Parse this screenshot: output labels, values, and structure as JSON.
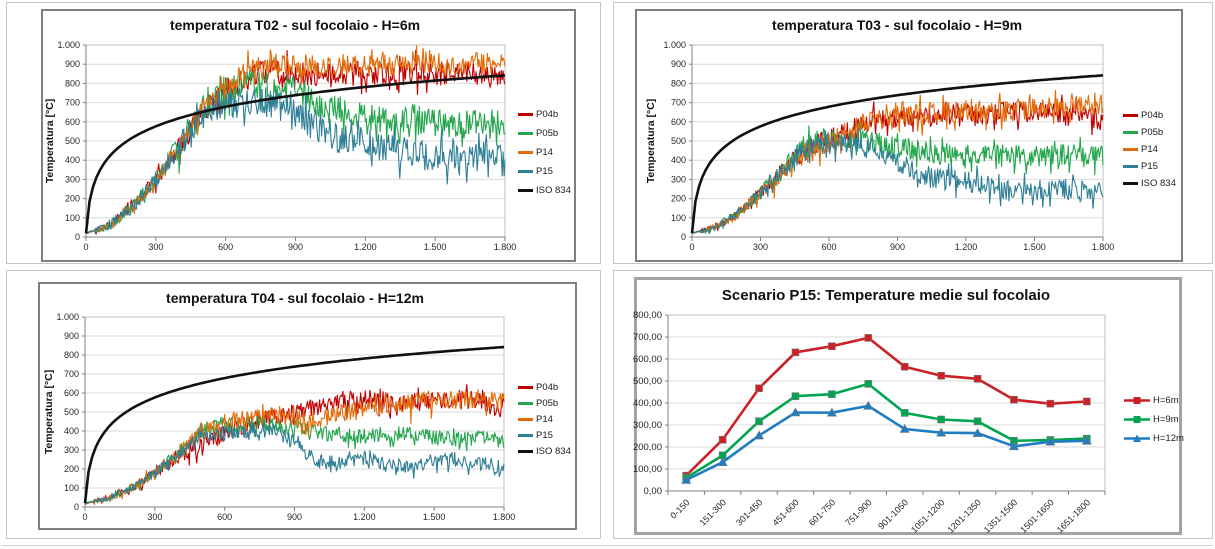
{
  "page": {
    "background": "#ffffff",
    "grid_border_color": "#c6c6c6"
  },
  "chart_data": [
    {
      "id": "t02",
      "type": "line",
      "title": "temperatura T02 - sul focolaio - H=6m",
      "ylabel": "Temperatura [°C]",
      "x_axis": {
        "range": [
          0,
          1800
        ],
        "tick_labels": [
          "0",
          "300",
          "600",
          "900",
          "1.200",
          "1.500",
          "1.800"
        ]
      },
      "y_axis": {
        "range": [
          0,
          1000
        ],
        "tick_labels": [
          "0",
          "100",
          "200",
          "300",
          "400",
          "500",
          "600",
          "700",
          "800",
          "900",
          "1.000"
        ]
      },
      "grid": "horizontal",
      "legend_position": "right",
      "series": [
        {
          "name": "P04b",
          "color": "#C00000",
          "noise_amplitude": 65,
          "mean_x_step": 100,
          "mean_values": [
            20,
            60,
            160,
            300,
            470,
            650,
            760,
            830,
            870,
            860,
            850,
            840,
            850,
            845,
            860,
            850,
            845,
            855,
            830
          ]
        },
        {
          "name": "P05b",
          "color": "#24A64C",
          "noise_amplitude": 75,
          "mean_x_step": 100,
          "mean_values": [
            20,
            60,
            160,
            300,
            480,
            680,
            760,
            800,
            790,
            760,
            700,
            660,
            630,
            610,
            620,
            600,
            590,
            610,
            600
          ]
        },
        {
          "name": "P14",
          "color": "#E36C0A",
          "noise_amplitude": 55,
          "mean_x_step": 100,
          "mean_values": [
            20,
            60,
            155,
            295,
            470,
            660,
            780,
            880,
            900,
            890,
            880,
            890,
            900,
            895,
            900,
            905,
            900,
            910,
            900
          ]
        },
        {
          "name": "P15",
          "color": "#2F7F96",
          "noise_amplitude": 80,
          "mean_x_step": 100,
          "mean_values": [
            20,
            60,
            160,
            300,
            460,
            640,
            700,
            710,
            700,
            650,
            560,
            510,
            490,
            460,
            440,
            420,
            430,
            430,
            390
          ]
        },
        {
          "name": "ISO 834",
          "color": "#111111",
          "curve": "iso834",
          "formula": "T = 20 + 345*log10(8*t_min + 1)"
        }
      ]
    },
    {
      "id": "t03",
      "type": "line",
      "title": "temperatura T03 - sul focolaio - H=9m",
      "ylabel": "Temperatura [°C]",
      "x_axis": {
        "range": [
          0,
          1800
        ],
        "tick_labels": [
          "0",
          "300",
          "600",
          "900",
          "1.200",
          "1.500",
          "1.800"
        ]
      },
      "y_axis": {
        "range": [
          0,
          1000
        ],
        "tick_labels": [
          "0",
          "100",
          "200",
          "300",
          "400",
          "500",
          "600",
          "700",
          "800",
          "900",
          "1.000"
        ]
      },
      "grid": "horizontal",
      "legend_position": "right",
      "series": [
        {
          "name": "P04b",
          "color": "#C00000",
          "noise_amplitude": 55,
          "mean_x_step": 100,
          "mean_values": [
            20,
            50,
            120,
            230,
            350,
            460,
            510,
            560,
            610,
            630,
            620,
            635,
            650,
            640,
            655,
            650,
            645,
            655,
            600
          ]
        },
        {
          "name": "P05b",
          "color": "#24A64C",
          "noise_amplitude": 55,
          "mean_x_step": 100,
          "mean_values": [
            20,
            50,
            120,
            230,
            360,
            490,
            510,
            515,
            500,
            470,
            450,
            430,
            420,
            430,
            435,
            420,
            425,
            435,
            420
          ]
        },
        {
          "name": "P14",
          "color": "#E36C0A",
          "noise_amplitude": 60,
          "mean_x_step": 100,
          "mean_values": [
            20,
            50,
            118,
            228,
            355,
            440,
            490,
            560,
            620,
            650,
            640,
            650,
            655,
            650,
            660,
            665,
            680,
            700,
            690
          ]
        },
        {
          "name": "P15",
          "color": "#2F7F96",
          "noise_amplitude": 55,
          "mean_x_step": 100,
          "mean_values": [
            20,
            50,
            120,
            230,
            350,
            470,
            485,
            490,
            475,
            390,
            325,
            300,
            290,
            275,
            230,
            240,
            250,
            240,
            225
          ]
        },
        {
          "name": "ISO 834",
          "color": "#111111",
          "curve": "iso834",
          "formula": "T = 20 + 345*log10(8*t_min + 1)"
        }
      ]
    },
    {
      "id": "t04",
      "type": "line",
      "title": "temperatura T04 - sul focolaio - H=12m",
      "ylabel": "Temperatura [°C]",
      "x_axis": {
        "range": [
          0,
          1800
        ],
        "tick_labels": [
          "0",
          "300",
          "600",
          "900",
          "1.200",
          "1.500",
          "1.800"
        ]
      },
      "y_axis": {
        "range": [
          0,
          1000
        ],
        "tick_labels": [
          "0",
          "100",
          "200",
          "300",
          "400",
          "500",
          "600",
          "700",
          "800",
          "900",
          "1.000"
        ]
      },
      "grid": "horizontal",
      "legend_position": "right",
      "series": [
        {
          "name": "P04b",
          "color": "#C00000",
          "noise_amplitude": 50,
          "mean_x_step": 100,
          "mean_values": [
            20,
            45,
            100,
            180,
            270,
            330,
            385,
            435,
            470,
            490,
            530,
            555,
            570,
            560,
            550,
            560,
            570,
            555,
            510
          ]
        },
        {
          "name": "P05b",
          "color": "#24A64C",
          "noise_amplitude": 42,
          "mean_x_step": 100,
          "mean_values": [
            20,
            45,
            100,
            180,
            285,
            405,
            430,
            440,
            430,
            415,
            395,
            380,
            370,
            390,
            380,
            370,
            360,
            360,
            350
          ]
        },
        {
          "name": "P14",
          "color": "#E36C0A",
          "noise_amplitude": 50,
          "mean_x_step": 100,
          "mean_values": [
            20,
            45,
            100,
            180,
            283,
            400,
            440,
            470,
            490,
            470,
            450,
            490,
            520,
            540,
            555,
            575,
            560,
            570,
            555
          ]
        },
        {
          "name": "P15",
          "color": "#2F7F96",
          "noise_amplitude": 38,
          "mean_x_step": 100,
          "mean_values": [
            20,
            45,
            100,
            180,
            280,
            380,
            390,
            400,
            415,
            340,
            240,
            230,
            260,
            220,
            210,
            250,
            240,
            230,
            205
          ]
        },
        {
          "name": "ISO 834",
          "color": "#111111",
          "curve": "iso834",
          "formula": "T = 20 + 345*log10(8*t_min + 1)"
        }
      ]
    },
    {
      "id": "p15",
      "type": "line",
      "title": "Scenario P15: Temperature medie sul focolaio",
      "categories": [
        "0-150",
        "151-300",
        "301-450",
        "451-600",
        "601-750",
        "751-900",
        "901-1050",
        "1051-1200",
        "1201-1350",
        "1351-1500",
        "1501-1650",
        "1651-1800"
      ],
      "y_axis": {
        "range": [
          0,
          800
        ],
        "tick_labels": [
          "0,00",
          "100,00",
          "200,00",
          "300,00",
          "400,00",
          "500,00",
          "600,00",
          "700,00",
          "800,00"
        ]
      },
      "grid": "horizontal",
      "legend_position": "right",
      "series": [
        {
          "name": "H=6m",
          "color": "#CB2026",
          "marker": "square",
          "values": [
            70,
            233,
            467,
            630,
            658,
            696,
            565,
            524,
            510,
            415,
            397,
            407
          ]
        },
        {
          "name": "H=9m",
          "color": "#00A550",
          "marker": "square",
          "values": [
            60,
            162,
            317,
            431,
            440,
            487,
            355,
            325,
            317,
            228,
            232,
            238
          ]
        },
        {
          "name": "H=12m",
          "color": "#1F7DC4",
          "marker": "triangle",
          "values": [
            50,
            131,
            252,
            357,
            356,
            387,
            282,
            265,
            263,
            203,
            224,
            228
          ]
        }
      ]
    }
  ]
}
